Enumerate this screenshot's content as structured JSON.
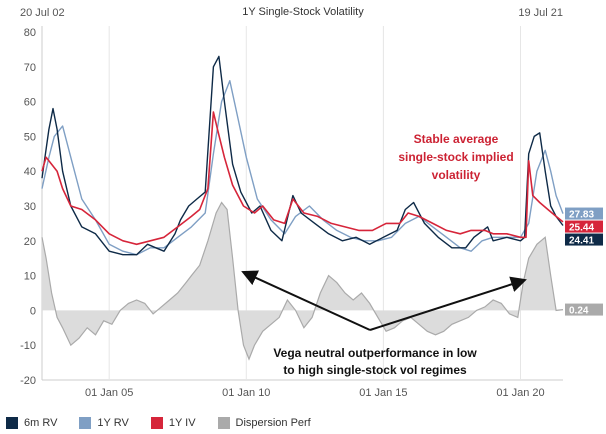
{
  "chart_data": {
    "type": "line",
    "title": "1Y Single-Stock Volatility",
    "start_label": "20 Jul 02",
    "end_label": "19 Jul 21",
    "x_ticks": [
      "01 Jan 05",
      "01 Jan 10",
      "01 Jan 15",
      "01 Jan 20"
    ],
    "y_ticks": [
      "80",
      "70",
      "60",
      "50",
      "40",
      "30",
      "20",
      "10",
      "0",
      "-10",
      "-20"
    ],
    "ylim": [
      -20,
      80
    ],
    "xlim": [
      2002.55,
      2021.55
    ],
    "grid": "vertical",
    "legend_position": "bottom",
    "series": [
      {
        "name": "6m RV",
        "color": "#0e2a47",
        "end_value": "24.41",
        "points": [
          [
            2002.55,
            38
          ],
          [
            2002.8,
            52
          ],
          [
            2002.95,
            58
          ],
          [
            2003.1,
            52
          ],
          [
            2003.3,
            40
          ],
          [
            2003.6,
            30
          ],
          [
            2004.0,
            24
          ],
          [
            2004.5,
            22
          ],
          [
            2005.0,
            17
          ],
          [
            2005.5,
            16
          ],
          [
            2006.0,
            16
          ],
          [
            2006.4,
            19
          ],
          [
            2006.7,
            18
          ],
          [
            2007.0,
            17
          ],
          [
            2007.4,
            22
          ],
          [
            2007.6,
            26
          ],
          [
            2007.9,
            30
          ],
          [
            2008.2,
            32
          ],
          [
            2008.5,
            34
          ],
          [
            2008.8,
            70
          ],
          [
            2009.0,
            73
          ],
          [
            2009.2,
            60
          ],
          [
            2009.5,
            42
          ],
          [
            2009.8,
            34
          ],
          [
            2010.2,
            28
          ],
          [
            2010.5,
            30
          ],
          [
            2010.9,
            23
          ],
          [
            2011.3,
            20
          ],
          [
            2011.7,
            33
          ],
          [
            2012.0,
            28
          ],
          [
            2012.5,
            25
          ],
          [
            2013.0,
            22
          ],
          [
            2013.5,
            20
          ],
          [
            2014.0,
            21
          ],
          [
            2014.5,
            19
          ],
          [
            2015.0,
            21
          ],
          [
            2015.5,
            23
          ],
          [
            2015.8,
            29
          ],
          [
            2016.1,
            31
          ],
          [
            2016.5,
            25
          ],
          [
            2017.0,
            21
          ],
          [
            2017.5,
            18
          ],
          [
            2018.0,
            18
          ],
          [
            2018.3,
            21
          ],
          [
            2018.8,
            24
          ],
          [
            2019.0,
            20
          ],
          [
            2019.5,
            21
          ],
          [
            2020.0,
            20
          ],
          [
            2020.15,
            21
          ],
          [
            2020.3,
            45
          ],
          [
            2020.5,
            50
          ],
          [
            2020.7,
            51
          ],
          [
            2020.9,
            40
          ],
          [
            2021.1,
            30
          ],
          [
            2021.3,
            27
          ],
          [
            2021.55,
            24.41
          ]
        ]
      },
      {
        "name": "1Y RV",
        "color": "#7f9fc4",
        "end_value": "27.83",
        "points": [
          [
            2002.55,
            35
          ],
          [
            2002.8,
            44
          ],
          [
            2003.0,
            50
          ],
          [
            2003.3,
            53
          ],
          [
            2003.6,
            44
          ],
          [
            2004.0,
            32
          ],
          [
            2004.5,
            26
          ],
          [
            2005.0,
            19
          ],
          [
            2005.5,
            17
          ],
          [
            2006.0,
            16
          ],
          [
            2006.5,
            18
          ],
          [
            2007.0,
            18
          ],
          [
            2007.5,
            21
          ],
          [
            2008.0,
            24
          ],
          [
            2008.5,
            28
          ],
          [
            2008.8,
            45
          ],
          [
            2009.1,
            60
          ],
          [
            2009.4,
            66
          ],
          [
            2009.7,
            55
          ],
          [
            2010.0,
            44
          ],
          [
            2010.4,
            32
          ],
          [
            2010.9,
            26
          ],
          [
            2011.4,
            22
          ],
          [
            2011.8,
            27
          ],
          [
            2012.3,
            30
          ],
          [
            2012.8,
            26
          ],
          [
            2013.3,
            23
          ],
          [
            2013.8,
            21
          ],
          [
            2014.3,
            20
          ],
          [
            2014.8,
            20
          ],
          [
            2015.3,
            21
          ],
          [
            2015.8,
            25
          ],
          [
            2016.3,
            27
          ],
          [
            2016.8,
            24
          ],
          [
            2017.3,
            21
          ],
          [
            2017.8,
            18
          ],
          [
            2018.2,
            17
          ],
          [
            2018.6,
            20
          ],
          [
            2019.0,
            21
          ],
          [
            2019.5,
            21
          ],
          [
            2020.0,
            21
          ],
          [
            2020.3,
            25
          ],
          [
            2020.6,
            40
          ],
          [
            2020.9,
            46
          ],
          [
            2021.1,
            40
          ],
          [
            2021.3,
            33
          ],
          [
            2021.55,
            27.83
          ]
        ]
      },
      {
        "name": "1Y IV",
        "color": "#d6253a",
        "end_value": "25.44",
        "points": [
          [
            2002.55,
            40
          ],
          [
            2002.7,
            44
          ],
          [
            2002.9,
            42
          ],
          [
            2003.1,
            40
          ],
          [
            2003.3,
            35
          ],
          [
            2003.6,
            30
          ],
          [
            2004.0,
            29
          ],
          [
            2004.5,
            26
          ],
          [
            2005.0,
            22
          ],
          [
            2005.5,
            20
          ],
          [
            2006.0,
            19
          ],
          [
            2006.5,
            20
          ],
          [
            2007.0,
            21
          ],
          [
            2007.5,
            24
          ],
          [
            2008.0,
            27
          ],
          [
            2008.3,
            29
          ],
          [
            2008.6,
            35
          ],
          [
            2008.8,
            57
          ],
          [
            2008.95,
            52
          ],
          [
            2009.2,
            44
          ],
          [
            2009.5,
            36
          ],
          [
            2009.9,
            30
          ],
          [
            2010.3,
            28
          ],
          [
            2010.6,
            30
          ],
          [
            2011.0,
            26
          ],
          [
            2011.4,
            25
          ],
          [
            2011.7,
            32
          ],
          [
            2012.1,
            28
          ],
          [
            2012.6,
            27
          ],
          [
            2013.1,
            25
          ],
          [
            2013.6,
            24
          ],
          [
            2014.1,
            23
          ],
          [
            2014.6,
            23
          ],
          [
            2015.1,
            25
          ],
          [
            2015.6,
            25
          ],
          [
            2015.9,
            28
          ],
          [
            2016.3,
            27
          ],
          [
            2016.8,
            25
          ],
          [
            2017.3,
            23
          ],
          [
            2017.8,
            22
          ],
          [
            2018.2,
            23
          ],
          [
            2018.7,
            23
          ],
          [
            2019.0,
            22
          ],
          [
            2019.5,
            22
          ],
          [
            2020.0,
            21
          ],
          [
            2020.2,
            21
          ],
          [
            2020.3,
            43
          ],
          [
            2020.45,
            33
          ],
          [
            2020.7,
            31
          ],
          [
            2021.0,
            29
          ],
          [
            2021.3,
            27
          ],
          [
            2021.55,
            25.44
          ]
        ]
      },
      {
        "name": "Dispersion Perf",
        "color": "#aaaaaa",
        "end_value": "0.24",
        "points": [
          [
            2002.55,
            21
          ],
          [
            2002.7,
            15
          ],
          [
            2002.9,
            5
          ],
          [
            2003.1,
            -2
          ],
          [
            2003.3,
            -5
          ],
          [
            2003.6,
            -10
          ],
          [
            2003.9,
            -8
          ],
          [
            2004.2,
            -5
          ],
          [
            2004.5,
            -7
          ],
          [
            2004.8,
            -3
          ],
          [
            2005.1,
            -4
          ],
          [
            2005.4,
            0
          ],
          [
            2005.7,
            2
          ],
          [
            2006.0,
            3
          ],
          [
            2006.3,
            2
          ],
          [
            2006.6,
            -1
          ],
          [
            2006.9,
            1
          ],
          [
            2007.2,
            3
          ],
          [
            2007.5,
            5
          ],
          [
            2007.8,
            8
          ],
          [
            2008.0,
            10
          ],
          [
            2008.3,
            13
          ],
          [
            2008.6,
            20
          ],
          [
            2008.9,
            28
          ],
          [
            2009.1,
            31
          ],
          [
            2009.3,
            29
          ],
          [
            2009.5,
            15
          ],
          [
            2009.7,
            0
          ],
          [
            2009.9,
            -10
          ],
          [
            2010.1,
            -14
          ],
          [
            2010.3,
            -10
          ],
          [
            2010.6,
            -6
          ],
          [
            2010.9,
            -4
          ],
          [
            2011.2,
            -2
          ],
          [
            2011.5,
            3
          ],
          [
            2011.8,
            0
          ],
          [
            2012.1,
            -5
          ],
          [
            2012.4,
            -2
          ],
          [
            2012.7,
            5
          ],
          [
            2013.0,
            10
          ],
          [
            2013.3,
            8
          ],
          [
            2013.6,
            5
          ],
          [
            2013.9,
            3
          ],
          [
            2014.2,
            5
          ],
          [
            2014.5,
            2
          ],
          [
            2014.8,
            -2
          ],
          [
            2015.1,
            -6
          ],
          [
            2015.4,
            -5
          ],
          [
            2015.7,
            -3
          ],
          [
            2016.0,
            -2
          ],
          [
            2016.3,
            -4
          ],
          [
            2016.6,
            -6
          ],
          [
            2016.9,
            -7
          ],
          [
            2017.2,
            -6
          ],
          [
            2017.5,
            -4
          ],
          [
            2017.8,
            -3
          ],
          [
            2018.1,
            -2
          ],
          [
            2018.4,
            0
          ],
          [
            2018.7,
            1
          ],
          [
            2019.0,
            3
          ],
          [
            2019.3,
            2
          ],
          [
            2019.6,
            -1
          ],
          [
            2019.9,
            -2
          ],
          [
            2020.1,
            8
          ],
          [
            2020.3,
            15
          ],
          [
            2020.6,
            19
          ],
          [
            2020.9,
            21
          ],
          [
            2021.1,
            10
          ],
          [
            2021.3,
            0
          ],
          [
            2021.55,
            0.24
          ]
        ]
      }
    ],
    "annotations": [
      {
        "lines": [
          "Stable average",
          "single-stock implied",
          "volatility"
        ],
        "color": "#cc2233"
      },
      {
        "lines": [
          "Vega neutral outperformance in low",
          "to high single-stock vol regimes"
        ],
        "color": "#111111"
      }
    ]
  }
}
